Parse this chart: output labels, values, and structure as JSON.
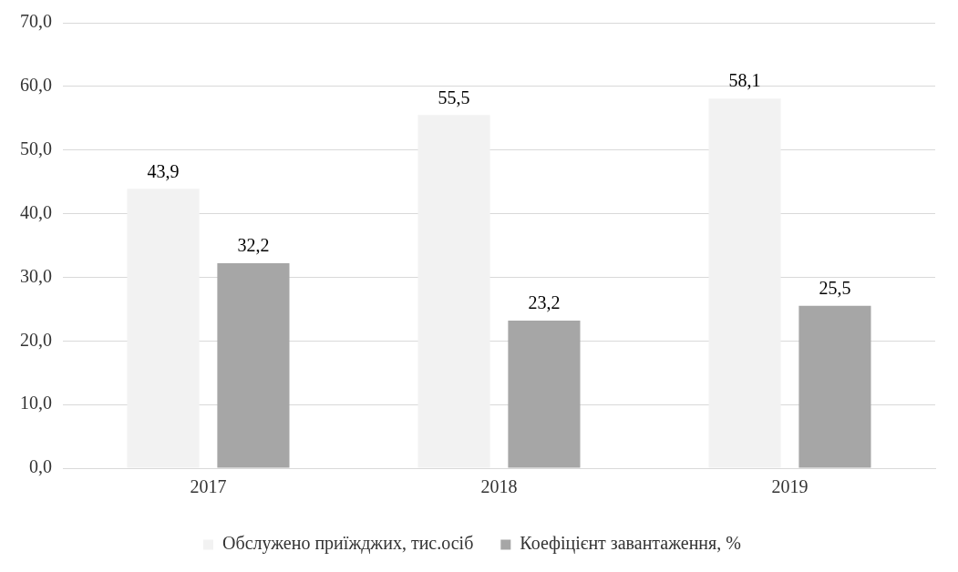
{
  "chart_data": {
    "type": "bar",
    "categories": [
      "2017",
      "2018",
      "2019"
    ],
    "series": [
      {
        "name": "Обслужено приїжджих, тис.осіб",
        "color": "#f2f2f2",
        "values": [
          43.9,
          55.5,
          58.1
        ],
        "value_labels": [
          "43,9",
          "55,5",
          "58,1"
        ]
      },
      {
        "name": "Коефіцієнт завантаження, %",
        "color": "#a6a6a6",
        "values": [
          32.2,
          23.2,
          25.5
        ],
        "value_labels": [
          "32,2",
          "23,2",
          "25,5"
        ]
      }
    ],
    "ylim": [
      0,
      70
    ],
    "yticks": [
      {
        "value": 0,
        "label": "0,0"
      },
      {
        "value": 10,
        "label": "10,0"
      },
      {
        "value": 20,
        "label": "20,0"
      },
      {
        "value": 30,
        "label": "30,0"
      },
      {
        "value": 40,
        "label": "40,0"
      },
      {
        "value": 50,
        "label": "50,0"
      },
      {
        "value": 60,
        "label": "60,0"
      },
      {
        "value": 70,
        "label": "70,0"
      }
    ],
    "grid": "y",
    "legend": "bottom"
  }
}
